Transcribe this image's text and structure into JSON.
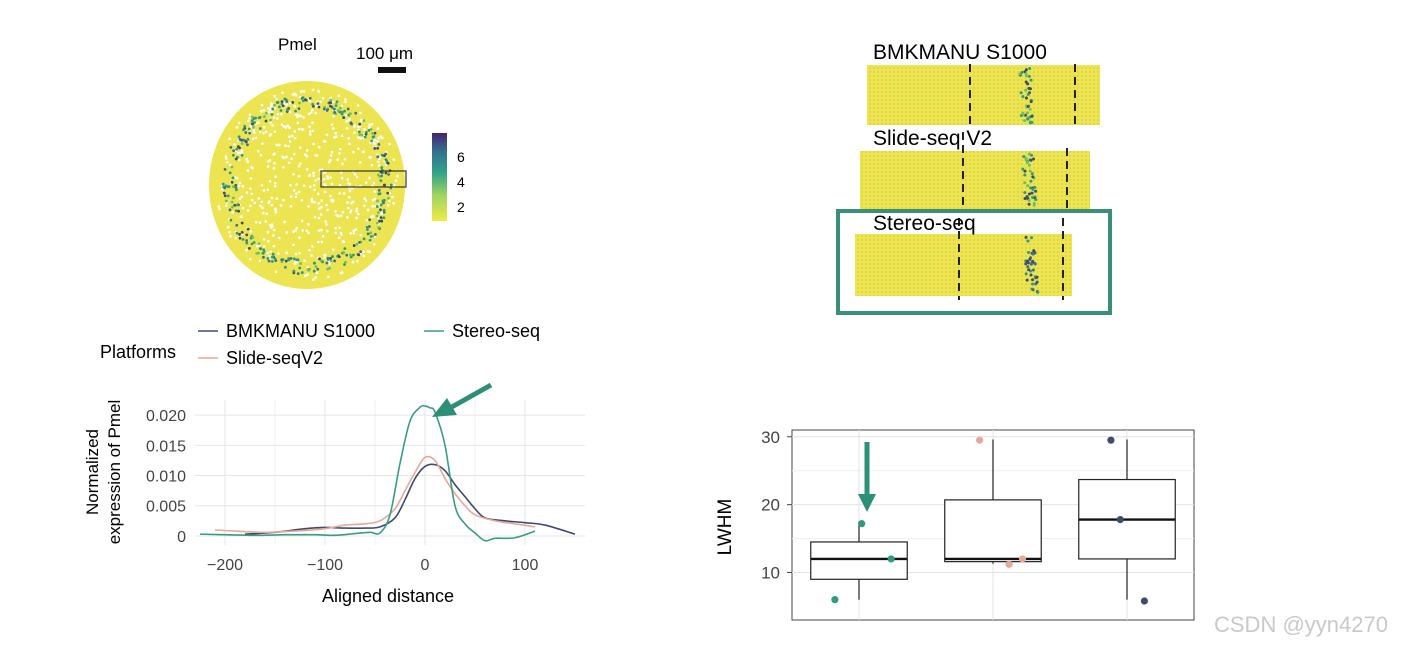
{
  "colors": {
    "yellow": "#ECE551",
    "teal": "#2E9B7E",
    "navy": "#3F4B6B",
    "salmon": "#E6A89A",
    "stereo_line": "#3A9C84",
    "box_green": "#2E8F78",
    "highlight_frame": "#3A8F7A"
  },
  "panel_a": {
    "title": "Pmel",
    "scale_bar_label": "100 μm",
    "colorbar_ticks": [
      "6",
      "4",
      "2"
    ]
  },
  "panel_b": {
    "platforms": [
      "BMKMANU S1000",
      "Slide-seq V2",
      "Stereo-seq"
    ],
    "highlighted_platform": "Stereo-seq"
  },
  "watermark": "CSDN @yyn4270",
  "chart_data": [
    {
      "type": "line",
      "legend_title": "Platforms",
      "xlabel": "Aligned distance",
      "ylabel_lines": [
        "Normalized",
        "expression of Pmel"
      ],
      "xlim": [
        -230,
        160
      ],
      "ylim": [
        -0.0015,
        0.0225
      ],
      "x_ticks": [
        -200,
        -100,
        0,
        100
      ],
      "x_tick_labels": [
        "−200",
        "−100",
        "0",
        "100"
      ],
      "y_ticks": [
        0,
        0.005,
        0.01,
        0.015,
        0.02
      ],
      "y_tick_labels": [
        "0",
        "0.005",
        "0.010",
        "0.015",
        "0.020"
      ],
      "annotation": "arrow pointing at Stereo-seq peak",
      "series": [
        {
          "name": "BMKMANU S1000",
          "color": "#3F4B6B",
          "x": [
            -180,
            -150,
            -120,
            -100,
            -80,
            -60,
            -45,
            -30,
            -20,
            -10,
            0,
            10,
            20,
            30,
            40,
            50,
            60,
            80,
            100,
            120,
            150
          ],
          "y": [
            0.0003,
            0.0006,
            0.0012,
            0.0014,
            0.0013,
            0.0013,
            0.0015,
            0.003,
            0.006,
            0.0095,
            0.0115,
            0.0118,
            0.0108,
            0.0085,
            0.0065,
            0.0045,
            0.003,
            0.0025,
            0.0022,
            0.0018,
            0.0003
          ]
        },
        {
          "name": "Slide-seqV2",
          "color": "#E6A89A",
          "x": [
            -210,
            -190,
            -160,
            -130,
            -100,
            -80,
            -60,
            -45,
            -30,
            -20,
            -10,
            0,
            10,
            20,
            30,
            40,
            50,
            70,
            90,
            110
          ],
          "y": [
            0.001,
            0.0008,
            0.0006,
            0.0008,
            0.0012,
            0.0018,
            0.002,
            0.0025,
            0.0045,
            0.0075,
            0.0105,
            0.013,
            0.0125,
            0.0095,
            0.007,
            0.005,
            0.0035,
            0.0025,
            0.002,
            0.0015
          ]
        },
        {
          "name": "Stereo-seq",
          "color": "#3A9C84",
          "x": [
            -225,
            -200,
            -170,
            -140,
            -110,
            -90,
            -70,
            -55,
            -45,
            -35,
            -25,
            -15,
            -5,
            0,
            5,
            10,
            20,
            30,
            40,
            50,
            60,
            70,
            90,
            110
          ],
          "y": [
            0.0003,
            0.0002,
            0.0001,
            0.0002,
            0.0002,
            0.0001,
            0.0004,
            0.0006,
            0.0005,
            0.0035,
            0.012,
            0.019,
            0.0213,
            0.0215,
            0.0212,
            0.0205,
            0.015,
            0.005,
            0.002,
            0.0005,
            -0.0008,
            -0.0004,
            -0.0003,
            0.0008
          ]
        }
      ]
    },
    {
      "type": "box",
      "ylabel": "LWHM",
      "ylim": [
        3,
        31
      ],
      "y_ticks": [
        10,
        20,
        30
      ],
      "y_tick_labels": [
        "10",
        "20",
        "30"
      ],
      "annotation": "arrow pointing down at first box",
      "boxes": [
        {
          "whisker_low": 6,
          "q1": 9,
          "median": 12,
          "q3": 14.5,
          "whisker_high": 17.5
        },
        {
          "whisker_low": 11.3,
          "q1": 11.6,
          "median": 12,
          "q3": 20.7,
          "whisker_high": 29.6
        },
        {
          "whisker_low": 6,
          "q1": 12,
          "median": 17.8,
          "q3": 23.7,
          "whisker_high": 29.6
        }
      ],
      "points": [
        {
          "box": 0,
          "dx": -0.18,
          "y": 6,
          "color": "#2E9B7E"
        },
        {
          "box": 0,
          "dx": 0.02,
          "y": 17.2,
          "color": "#2E9B7E"
        },
        {
          "box": 0,
          "dx": 0.24,
          "y": 12,
          "color": "#2E9B7E"
        },
        {
          "box": 1,
          "dx": -0.1,
          "y": 29.5,
          "color": "#E6A89A"
        },
        {
          "box": 1,
          "dx": 0.12,
          "y": 11.2,
          "color": "#E6A89A"
        },
        {
          "box": 1,
          "dx": 0.22,
          "y": 12,
          "color": "#E6A89A"
        },
        {
          "box": 2,
          "dx": -0.12,
          "y": 29.5,
          "color": "#3F4B6B"
        },
        {
          "box": 2,
          "dx": -0.05,
          "y": 17.8,
          "color": "#3F4B6B"
        },
        {
          "box": 2,
          "dx": 0.13,
          "y": 5.8,
          "color": "#3F4B6B"
        }
      ]
    }
  ]
}
